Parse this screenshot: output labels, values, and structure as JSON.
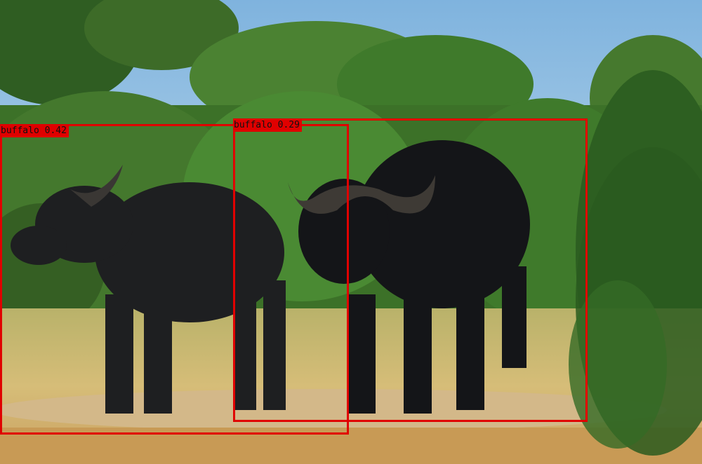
{
  "image": {
    "subject": "african-buffalo-scene"
  },
  "detections": [
    {
      "label": "buffalo",
      "score": "0.42",
      "caption": "buffalo 0.42"
    },
    {
      "label": "buffalo",
      "score": "0.29",
      "caption": "buffalo 0.29"
    }
  ],
  "colors": {
    "box": "#e00000",
    "sky": "#86b7dd",
    "foliage": "#3f7a2b",
    "grass": "#c9b06a",
    "buffalo": "#1c1d1f"
  }
}
